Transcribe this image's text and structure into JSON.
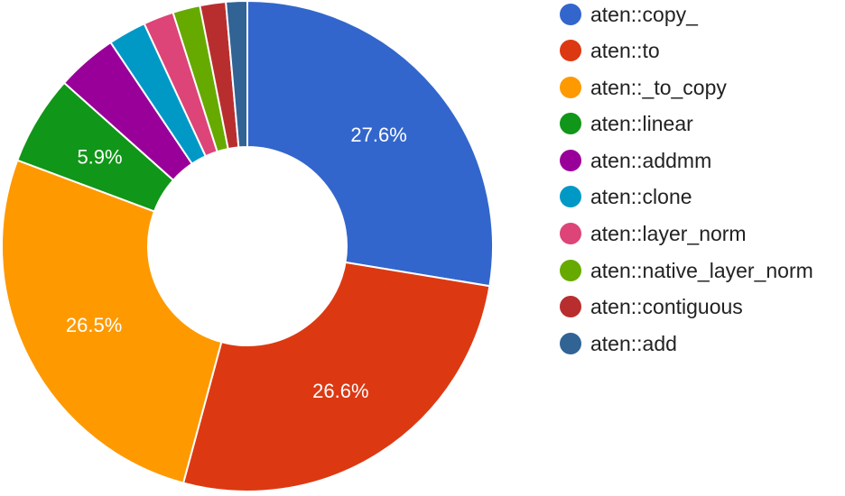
{
  "chart_data": {
    "type": "pie",
    "donut": true,
    "legend_position": "right",
    "series": [
      {
        "name": "aten::copy_",
        "value": 27.6,
        "color": "#3366cc",
        "label": "27.6%"
      },
      {
        "name": "aten::to",
        "value": 26.6,
        "color": "#dc3912",
        "label": "26.6%"
      },
      {
        "name": "aten::_to_copy",
        "value": 26.5,
        "color": "#ff9900",
        "label": "26.5%"
      },
      {
        "name": "aten::linear",
        "value": 5.9,
        "color": "#109618",
        "label": "5.9%"
      },
      {
        "name": "aten::addmm",
        "value": 4.0,
        "color": "#990099",
        "label": ""
      },
      {
        "name": "aten::clone",
        "value": 2.5,
        "color": "#0099c6",
        "label": ""
      },
      {
        "name": "aten::layer_norm",
        "value": 2.0,
        "color": "#dd4477",
        "label": ""
      },
      {
        "name": "aten::native_layer_norm",
        "value": 1.8,
        "color": "#66aa00",
        "label": ""
      },
      {
        "name": "aten::contiguous",
        "value": 1.7,
        "color": "#b82e2e",
        "label": ""
      },
      {
        "name": "aten::add",
        "value": 1.4,
        "color": "#316395",
        "label": ""
      }
    ]
  }
}
